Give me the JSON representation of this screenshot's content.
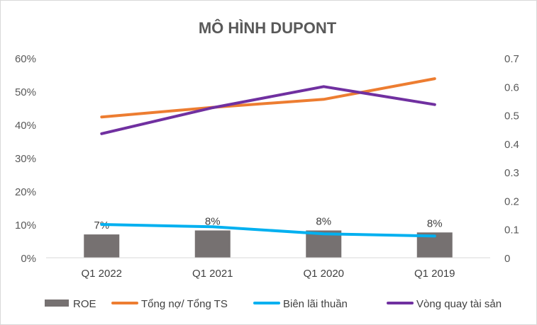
{
  "chart_data": {
    "type": "bar",
    "title": "MÔ HÌNH DUPONT",
    "categories": [
      "Q1 2022",
      "Q1 2021",
      "Q1 2020",
      "Q1 2019"
    ],
    "series": [
      {
        "name": "ROE",
        "type": "bar",
        "axis": "left",
        "color": "#767171",
        "values": [
          0.07,
          0.082,
          0.082,
          0.076
        ],
        "data_labels": [
          "7%",
          "8%",
          "8%",
          "8%"
        ]
      },
      {
        "name": "Tổng nợ/ Tổng TS",
        "type": "line",
        "axis": "left",
        "color": "#ED7D31",
        "values": [
          0.423,
          0.452,
          0.476,
          0.538
        ]
      },
      {
        "name": "Biên lãi thuần",
        "type": "line",
        "axis": "left",
        "color": "#00B0F0",
        "values": [
          0.1,
          0.093,
          0.072,
          0.065
        ]
      },
      {
        "name": "Vòng quay tài sản",
        "type": "line",
        "axis": "right",
        "color": "#7030A0",
        "values": [
          0.435,
          0.526,
          0.6,
          0.537
        ]
      }
    ],
    "y_left": {
      "min": 0,
      "max": 0.6,
      "ticks": [
        0,
        0.1,
        0.2,
        0.3,
        0.4,
        0.5,
        0.6
      ],
      "tick_labels": [
        "0%",
        "10%",
        "20%",
        "30%",
        "40%",
        "50%",
        "60%"
      ]
    },
    "y_right": {
      "min": 0,
      "max": 0.7,
      "ticks": [
        0,
        0.1,
        0.2,
        0.3,
        0.4,
        0.5,
        0.6,
        0.7
      ],
      "tick_labels": [
        "0",
        "0.1",
        "0.2",
        "0.3",
        "0.4",
        "0.5",
        "0.6",
        "0.7"
      ]
    },
    "grid": false,
    "legend_position": "bottom"
  }
}
